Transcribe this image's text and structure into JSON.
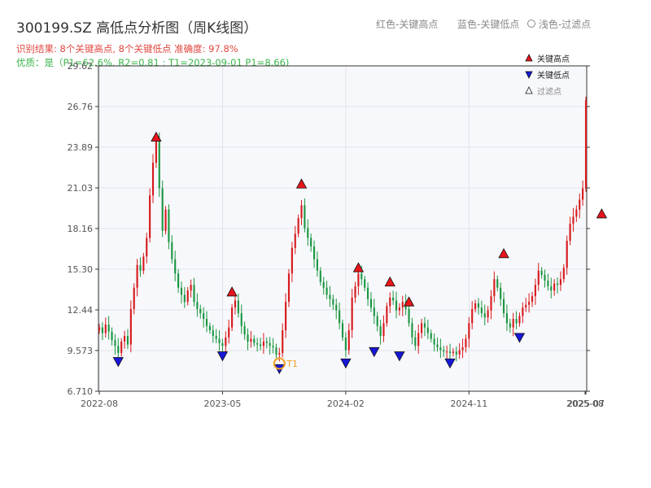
{
  "header": {
    "title": "300199.SZ 高低点分析图（周K线图）",
    "subtitle_result": "识别结果: 8个关键高点, 8个关键低点  准确度: 97.8%",
    "subtitle_quality": "优质：是（P1=62.6%, R2=0.81 ; T1=2023-09-01 P1=8.66)",
    "legend_top": [
      "红色-关键高点",
      "蓝色-关键低点",
      "浅色-过滤点"
    ]
  },
  "colors": {
    "up": "#d7191c",
    "down": "#1a9641",
    "high_marker": "#e8141b",
    "low_marker": "#1717d8",
    "t1_ring": "#f0a020",
    "plot_bg": "#f7f8fb"
  },
  "chart_data": {
    "type": "candlestick",
    "y_ticks": [
      "29.62",
      "26.76",
      "23.89",
      "21.03",
      "18.16",
      "15.30",
      "12.44",
      "9.573",
      "6.710"
    ],
    "ylim": [
      6.71,
      29.62
    ],
    "x_ticks": [
      "2022-08",
      "2023-05",
      "2024-02",
      "2024-11",
      "2025-07",
      "2025-08"
    ],
    "legend": [
      {
        "label": "关键高点",
        "marker": "triangle-up",
        "color": "#e8141b"
      },
      {
        "label": "关键低点",
        "marker": "triangle-down",
        "color": "#1717d8"
      },
      {
        "label": "过滤点",
        "marker": "triangle-up-outline",
        "color": "#ffffff"
      }
    ],
    "t1_label": "T1",
    "closes": [
      11.2,
      10.8,
      11.4,
      10.9,
      10.3,
      9.9,
      9.4,
      10.2,
      10.6,
      10.0,
      12.5,
      14.0,
      15.6,
      15.2,
      16.2,
      17.5,
      20.5,
      22.8,
      24.5,
      21.0,
      18.0,
      19.5,
      17.2,
      16.0,
      15.0,
      14.0,
      13.5,
      13.0,
      13.8,
      14.2,
      13.0,
      12.5,
      12.2,
      11.8,
      11.3,
      11.0,
      10.6,
      10.4,
      10.1,
      9.9,
      10.5,
      11.2,
      12.6,
      13.1,
      12.2,
      11.3,
      10.7,
      10.2,
      10.4,
      10.1,
      10.0,
      9.9,
      10.2,
      10.1,
      9.9,
      9.8,
      9.3,
      9.4,
      11.0,
      13.0,
      15.0,
      16.8,
      17.8,
      18.9,
      19.8,
      18.2,
      17.5,
      16.9,
      16.0,
      15.2,
      14.4,
      14.0,
      13.5,
      13.2,
      12.8,
      12.4,
      11.5,
      10.5,
      9.6,
      11.0,
      13.3,
      14.1,
      15.0,
      14.6,
      14.0,
      13.2,
      12.6,
      12.0,
      11.3,
      10.6,
      11.5,
      12.7,
      13.3,
      13.1,
      12.4,
      12.6,
      13.0,
      12.5,
      11.5,
      10.5,
      9.9,
      10.8,
      11.5,
      11.2,
      10.8,
      10.4,
      10.0,
      9.8,
      9.6,
      9.5,
      9.5,
      9.4,
      9.5,
      9.3,
      9.6,
      9.8,
      10.4,
      11.5,
      12.5,
      12.9,
      12.6,
      12.2,
      11.9,
      12.4,
      13.4,
      14.6,
      14.0,
      13.2,
      12.2,
      11.5,
      11.2,
      11.8,
      11.5,
      12.0,
      12.6,
      12.8,
      13.0,
      13.4,
      14.2,
      15.2,
      14.9,
      14.5,
      14.1,
      13.8,
      14.3,
      14.2,
      14.6,
      15.4,
      17.3,
      18.5,
      19.0,
      19.5,
      20.2,
      21.0,
      27.2
    ],
    "highs": [
      {
        "index": 18,
        "value": 24.2
      },
      {
        "index": 42,
        "value": 13.3
      },
      {
        "index": 64,
        "value": 20.9
      },
      {
        "index": 82,
        "value": 15.0
      },
      {
        "index": 92,
        "value": 14.0
      },
      {
        "index": 98,
        "value": 12.6
      },
      {
        "index": 128,
        "value": 16.0
      },
      {
        "index": 159,
        "value": 18.8
      }
    ],
    "lows": [
      {
        "index": 6,
        "value": 9.2
      },
      {
        "index": 39,
        "value": 9.6
      },
      {
        "index": 57,
        "value": 8.7
      },
      {
        "index": 78,
        "value": 9.1
      },
      {
        "index": 87,
        "value": 9.9
      },
      {
        "index": 95,
        "value": 9.6
      },
      {
        "index": 111,
        "value": 9.1
      },
      {
        "index": 133,
        "value": 10.9
      }
    ],
    "t1": {
      "index": 57,
      "value": 8.66
    }
  }
}
